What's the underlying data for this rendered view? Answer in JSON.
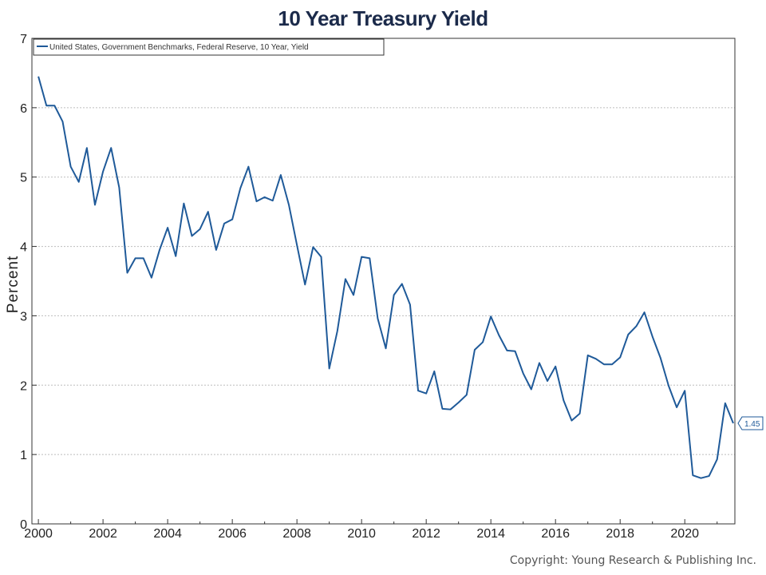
{
  "chart_data": {
    "type": "line",
    "title": "10 Year Treasury Yield",
    "ylabel": "Percent",
    "xlim": [
      1999.8,
      2021.55
    ],
    "ylim": [
      0,
      7
    ],
    "y_ticks": [
      0,
      1,
      2,
      3,
      4,
      5,
      6,
      7
    ],
    "x_ticks": [
      2000,
      2002,
      2004,
      2006,
      2008,
      2010,
      2012,
      2014,
      2016,
      2018,
      2020
    ],
    "grid": true,
    "legend_placement": "top-left",
    "series": [
      {
        "name": "United States, Government Benchmarks, Federal Reserve, 10 Year, Yield",
        "color": "#1f5a99",
        "end_label": "1.45",
        "x": [
          2000.0,
          2000.25,
          2000.5,
          2000.75,
          2001.0,
          2001.25,
          2001.5,
          2001.75,
          2002.0,
          2002.25,
          2002.5,
          2002.75,
          2003.0,
          2003.25,
          2003.5,
          2003.75,
          2004.0,
          2004.25,
          2004.5,
          2004.75,
          2005.0,
          2005.25,
          2005.5,
          2005.75,
          2006.0,
          2006.25,
          2006.5,
          2006.75,
          2007.0,
          2007.25,
          2007.5,
          2007.75,
          2008.0,
          2008.25,
          2008.5,
          2008.75,
          2009.0,
          2009.25,
          2009.5,
          2009.75,
          2010.0,
          2010.25,
          2010.5,
          2010.75,
          2011.0,
          2011.25,
          2011.5,
          2011.75,
          2012.0,
          2012.25,
          2012.5,
          2012.75,
          2013.0,
          2013.25,
          2013.5,
          2013.75,
          2014.0,
          2014.25,
          2014.5,
          2014.75,
          2015.0,
          2015.25,
          2015.5,
          2015.75,
          2016.0,
          2016.25,
          2016.5,
          2016.75,
          2017.0,
          2017.25,
          2017.5,
          2017.75,
          2018.0,
          2018.25,
          2018.5,
          2018.75,
          2019.0,
          2019.25,
          2019.5,
          2019.75,
          2020.0,
          2020.25,
          2020.5,
          2020.75,
          2021.0,
          2021.25,
          2021.5
        ],
        "values": [
          6.45,
          6.03,
          6.03,
          5.8,
          5.15,
          4.93,
          5.42,
          4.6,
          5.08,
          5.42,
          4.85,
          3.62,
          3.83,
          3.83,
          3.55,
          3.95,
          4.27,
          3.86,
          4.62,
          4.15,
          4.25,
          4.5,
          3.95,
          4.33,
          4.39,
          4.84,
          5.15,
          4.65,
          4.71,
          4.66,
          5.03,
          4.6,
          4.02,
          3.45,
          3.99,
          3.85,
          2.24,
          2.78,
          3.53,
          3.3,
          3.85,
          3.83,
          2.96,
          2.53,
          3.3,
          3.46,
          3.16,
          1.92,
          1.88,
          2.2,
          1.66,
          1.65,
          1.75,
          1.86,
          2.51,
          2.62,
          2.99,
          2.72,
          2.5,
          2.49,
          2.17,
          1.94,
          2.32,
          2.06,
          2.27,
          1.78,
          1.49,
          1.59,
          2.43,
          2.38,
          2.3,
          2.3,
          2.4,
          2.73,
          2.85,
          3.05,
          2.7,
          2.39,
          1.99,
          1.68,
          1.92,
          0.7,
          0.66,
          0.69,
          0.93,
          1.74,
          1.45
        ]
      }
    ]
  },
  "footer": {
    "copyright": "Copyright: Young Research & Publishing Inc."
  }
}
